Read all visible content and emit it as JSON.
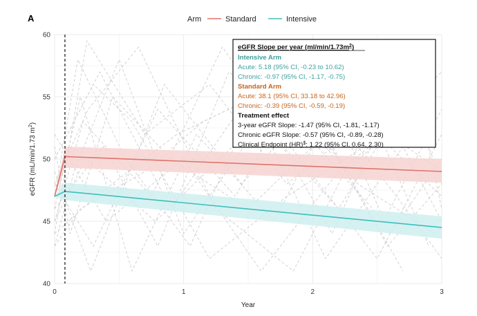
{
  "panel_label": "A",
  "colors": {
    "standard": "#E0726C",
    "standard_band": "#F6D3D1",
    "intensive": "#3DBDBD",
    "intensive_band": "#CFEEEE",
    "intensive_text": "#3E9E9E",
    "standard_text": "#C8641A",
    "grid": "#EBEBEB",
    "spaghetti": "#C8C8C8"
  },
  "legend": {
    "title": "Arm",
    "entries": [
      {
        "label": "Standard",
        "color_key": "standard"
      },
      {
        "label": "Intensive",
        "color_key": "intensive"
      }
    ],
    "placement": "top"
  },
  "annotation": {
    "title": "eGFR Slope per year (ml/min/1.73m",
    "title_sup": "2",
    "title_end": ")",
    "intensive_heading": "Intensive Arm",
    "intensive_acute": "Acute: 5.18 (95% CI, -0.23 to 10.62)",
    "intensive_chronic": "Chronic: -0.97 (95% CI, -1.17, -0.75)",
    "standard_heading": "Standard Arm",
    "standard_acute": "Acute: 38.1 (95% CI, 33.18 to 42.96)",
    "standard_chronic": "Chronic: -0.39 (95% CI, -0.59, -0.19)",
    "treatment_heading": "Treatment effect",
    "effect_1": "3-year eGFR Slope: -1.47 (95% CI, -1.81, -1.17)",
    "effect_2": "Chronic eGFR Slope: -0.57 (95% CI, -0.89, -0.28)",
    "effect_3_pre": "Clinical Endpoint (HR)",
    "effect_3_sup": "$",
    "effect_3_post": ": 1.22 (95% CI, 0.64, 2.30)"
  },
  "chart_data": {
    "type": "line",
    "xlabel": "Year",
    "ylabel": "eGFR (mL/min/1.73 m",
    "ylabel_sup": "2",
    "ylabel_end": ")",
    "xlim": [
      0,
      3
    ],
    "ylim": [
      40,
      60
    ],
    "x_ticks": [
      0,
      1,
      2,
      3
    ],
    "y_ticks": [
      40,
      45,
      50,
      55,
      60
    ],
    "grid": true,
    "vline_x": 0.08,
    "series": [
      {
        "name": "Standard",
        "color_key": "standard",
        "band_key": "standard_band",
        "x": [
          0,
          0.08,
          3
        ],
        "y": [
          47.0,
          50.2,
          49.0
        ],
        "lower": [
          47.0,
          49.3,
          48.1
        ],
        "upper": [
          47.0,
          51.0,
          50.0
        ]
      },
      {
        "name": "Intensive",
        "color_key": "intensive",
        "band_key": "intensive_band",
        "x": [
          0,
          0.08,
          3
        ],
        "y": [
          47.0,
          47.4,
          44.5
        ],
        "lower": [
          47.0,
          46.7,
          43.6
        ],
        "upper": [
          47.0,
          48.1,
          45.4
        ]
      }
    ],
    "individual_trajectories": [
      {
        "x": [
          0,
          0.25,
          0.7,
          1.2,
          1.8,
          2.4,
          3
        ],
        "y": [
          44,
          59.5,
          52,
          56,
          48,
          53,
          47
        ]
      },
      {
        "x": [
          0,
          0.3,
          0.8,
          1.4,
          2.0,
          2.6,
          3
        ],
        "y": [
          48,
          43,
          54,
          47,
          58,
          44,
          50
        ]
      },
      {
        "x": [
          0,
          0.2,
          0.6,
          1.1,
          1.7,
          2.3,
          2.9
        ],
        "y": [
          46,
          55,
          41,
          52,
          45,
          57,
          43
        ]
      },
      {
        "x": [
          0,
          0.35,
          0.9,
          1.5,
          2.1,
          2.7,
          3
        ],
        "y": [
          50,
          57,
          46,
          55,
          42,
          51,
          45
        ]
      },
      {
        "x": [
          0,
          0.15,
          0.5,
          1.0,
          1.6,
          2.2,
          2.8
        ],
        "y": [
          43,
          49,
          58,
          44,
          53,
          46,
          56
        ]
      },
      {
        "x": [
          0,
          0.4,
          1.0,
          1.6,
          2.2,
          2.8,
          3
        ],
        "y": [
          52,
          45,
          50,
          41,
          49,
          54,
          48
        ]
      },
      {
        "x": [
          0,
          0.22,
          0.75,
          1.3,
          1.9,
          2.5,
          3
        ],
        "y": [
          45,
          53,
          47,
          59,
          50,
          42,
          52
        ]
      },
      {
        "x": [
          0,
          0.28,
          0.85,
          1.45,
          2.05,
          2.65,
          3
        ],
        "y": [
          49,
          41,
          56,
          48,
          55,
          47,
          42
        ]
      },
      {
        "x": [
          0,
          0.18,
          0.55,
          1.05,
          1.65,
          2.25,
          2.9
        ],
        "y": [
          47,
          58,
          50,
          43,
          57,
          49,
          55
        ]
      },
      {
        "x": [
          0,
          0.32,
          0.95,
          1.55,
          2.15,
          2.75,
          3
        ],
        "y": [
          44,
          47,
          52,
          55,
          44,
          58,
          46
        ]
      },
      {
        "x": [
          0,
          0.12,
          0.45,
          0.9,
          1.5,
          2.1,
          2.7
        ],
        "y": [
          51,
          44,
          55,
          50,
          46,
          52,
          41
        ]
      },
      {
        "x": [
          0,
          0.38,
          0.8,
          1.35,
          1.95,
          2.55,
          3
        ],
        "y": [
          46,
          51,
          43,
          57,
          52,
          45,
          54
        ]
      },
      {
        "x": [
          0,
          0.26,
          0.65,
          1.25,
          1.85,
          2.45,
          3
        ],
        "y": [
          48,
          54,
          59,
          46,
          41,
          53,
          49
        ]
      },
      {
        "x": [
          0,
          0.2,
          0.7,
          1.15,
          1.75,
          2.35,
          2.95
        ],
        "y": [
          43,
          46,
          49,
          53,
          56,
          48,
          44
        ]
      },
      {
        "x": [
          0,
          0.3,
          0.6,
          1.2,
          1.8,
          2.4,
          3
        ],
        "y": [
          50,
          56,
          53,
          42,
          47,
          51,
          57
        ]
      },
      {
        "x": [
          0,
          0.24,
          0.78,
          1.38,
          1.98,
          2.58,
          3
        ],
        "y": [
          45,
          50,
          45,
          51,
          54,
          43,
          48
        ]
      }
    ]
  }
}
